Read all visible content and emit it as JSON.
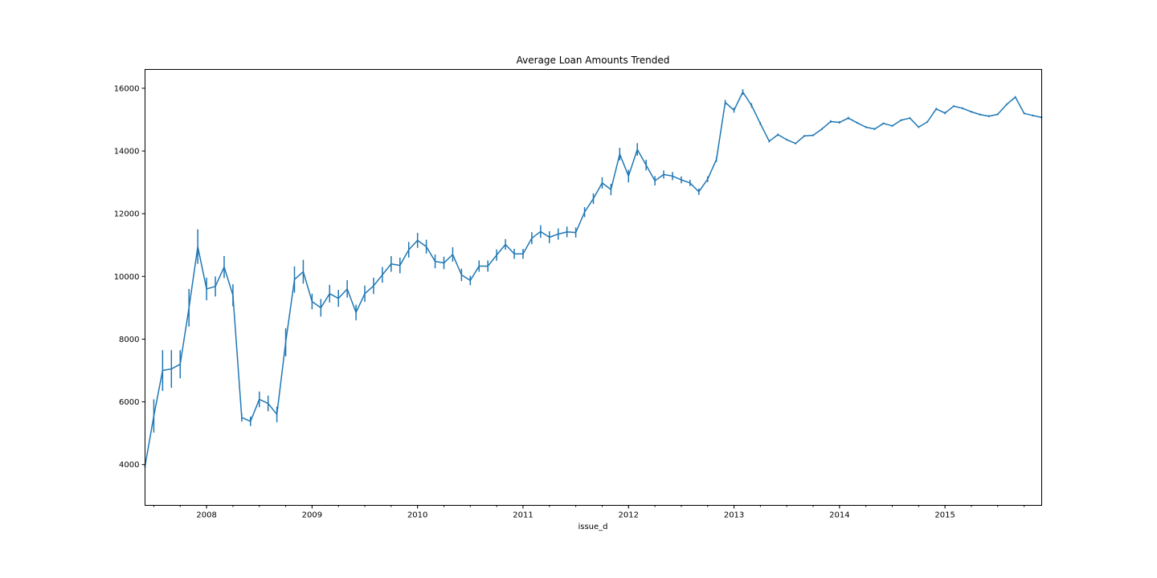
{
  "chart_data": {
    "type": "line",
    "title": "Average Loan Amounts Trended",
    "xlabel": "issue_d",
    "ylabel": "",
    "xlim": [
      "2007-06",
      "2015-12"
    ],
    "ylim": [
      2700,
      16600
    ],
    "yticks": [
      4000,
      6000,
      8000,
      10000,
      12000,
      14000,
      16000
    ],
    "xticks": [
      {
        "date": "2008-01",
        "label": "2008"
      },
      {
        "date": "2009-01",
        "label": "2009"
      },
      {
        "date": "2010-01",
        "label": "2010"
      },
      {
        "date": "2011-01",
        "label": "2011"
      },
      {
        "date": "2012-01",
        "label": "2012"
      },
      {
        "date": "2013-01",
        "label": "2013"
      },
      {
        "date": "2014-01",
        "label": "2014"
      },
      {
        "date": "2015-01",
        "label": "2015"
      }
    ],
    "grid": false,
    "legend": false,
    "color": "#1f77b4",
    "series": [
      {
        "x": [
          "2007-06",
          "2007-07",
          "2007-08",
          "2007-09",
          "2007-10",
          "2007-11",
          "2007-12",
          "2008-01",
          "2008-02",
          "2008-03",
          "2008-04",
          "2008-05",
          "2008-06",
          "2008-07",
          "2008-08",
          "2008-09",
          "2008-10",
          "2008-11",
          "2008-12",
          "2009-01",
          "2009-02",
          "2009-03",
          "2009-04",
          "2009-05",
          "2009-06",
          "2009-07",
          "2009-08",
          "2009-09",
          "2009-10",
          "2009-11",
          "2009-12",
          "2010-01",
          "2010-02",
          "2010-03",
          "2010-04",
          "2010-05",
          "2010-06",
          "2010-07",
          "2010-08",
          "2010-09",
          "2010-10",
          "2010-11",
          "2010-12",
          "2011-01",
          "2011-02",
          "2011-03",
          "2011-04",
          "2011-05",
          "2011-06",
          "2011-07",
          "2011-08",
          "2011-09",
          "2011-10",
          "2011-11",
          "2011-12",
          "2012-01",
          "2012-02",
          "2012-03",
          "2012-04",
          "2012-05",
          "2012-06",
          "2012-07",
          "2012-08",
          "2012-09",
          "2012-10",
          "2012-11",
          "2012-12",
          "2013-01",
          "2013-02",
          "2013-03",
          "2013-04",
          "2013-05",
          "2013-06",
          "2013-07",
          "2013-08",
          "2013-09",
          "2013-10",
          "2013-11",
          "2013-12",
          "2014-01",
          "2014-02",
          "2014-03",
          "2014-04",
          "2014-05",
          "2014-06",
          "2014-07",
          "2014-08",
          "2014-09",
          "2014-10",
          "2014-11",
          "2014-12",
          "2015-01",
          "2015-02",
          "2015-03",
          "2015-04",
          "2015-05",
          "2015-06",
          "2015-07",
          "2015-08",
          "2015-09",
          "2015-10",
          "2015-11",
          "2015-12"
        ],
        "y": [
          3950,
          5550,
          7000,
          7050,
          7200,
          9000,
          10950,
          9600,
          9680,
          10300,
          9400,
          5500,
          5380,
          6080,
          5950,
          5600,
          7900,
          9900,
          10150,
          9200,
          9000,
          9450,
          9300,
          9600,
          8850,
          9450,
          9700,
          10050,
          10400,
          10350,
          10850,
          11150,
          10950,
          10480,
          10430,
          10700,
          10050,
          9870,
          10330,
          10330,
          10680,
          11020,
          10720,
          10720,
          11220,
          11430,
          11250,
          11350,
          11420,
          11400,
          12050,
          12480,
          12980,
          12770,
          13900,
          13200,
          14050,
          13550,
          13050,
          13250,
          13200,
          13080,
          12980,
          12700,
          13100,
          13730,
          15550,
          15300,
          15880,
          15450,
          14870,
          14310,
          14520,
          14360,
          14240,
          14480,
          14500,
          14700,
          14940,
          14910,
          15050,
          14900,
          14760,
          14700,
          14880,
          14800,
          14980,
          15050,
          14760,
          14930,
          15340,
          15210,
          15430,
          15360,
          15250,
          15160,
          15110,
          15170,
          15480,
          15720,
          15200,
          15130,
          15070
        ],
        "err": [
          50,
          530,
          650,
          600,
          450,
          600,
          550,
          360,
          320,
          350,
          350,
          130,
          150,
          250,
          250,
          250,
          450,
          420,
          380,
          250,
          280,
          280,
          270,
          280,
          250,
          260,
          260,
          250,
          250,
          250,
          250,
          240,
          220,
          220,
          200,
          230,
          200,
          150,
          180,
          180,
          180,
          170,
          160,
          160,
          190,
          200,
          190,
          180,
          170,
          160,
          160,
          170,
          180,
          180,
          200,
          200,
          200,
          170,
          150,
          130,
          130,
          110,
          100,
          100,
          90,
          80,
          80,
          80,
          90,
          70,
          50,
          40,
          40,
          30,
          30,
          30,
          30,
          30,
          40,
          40,
          40,
          30,
          30,
          30,
          30,
          30,
          30,
          30,
          30,
          30,
          40,
          40,
          30,
          30,
          30,
          30,
          30,
          30,
          30,
          30,
          30,
          30,
          30
        ]
      }
    ]
  }
}
